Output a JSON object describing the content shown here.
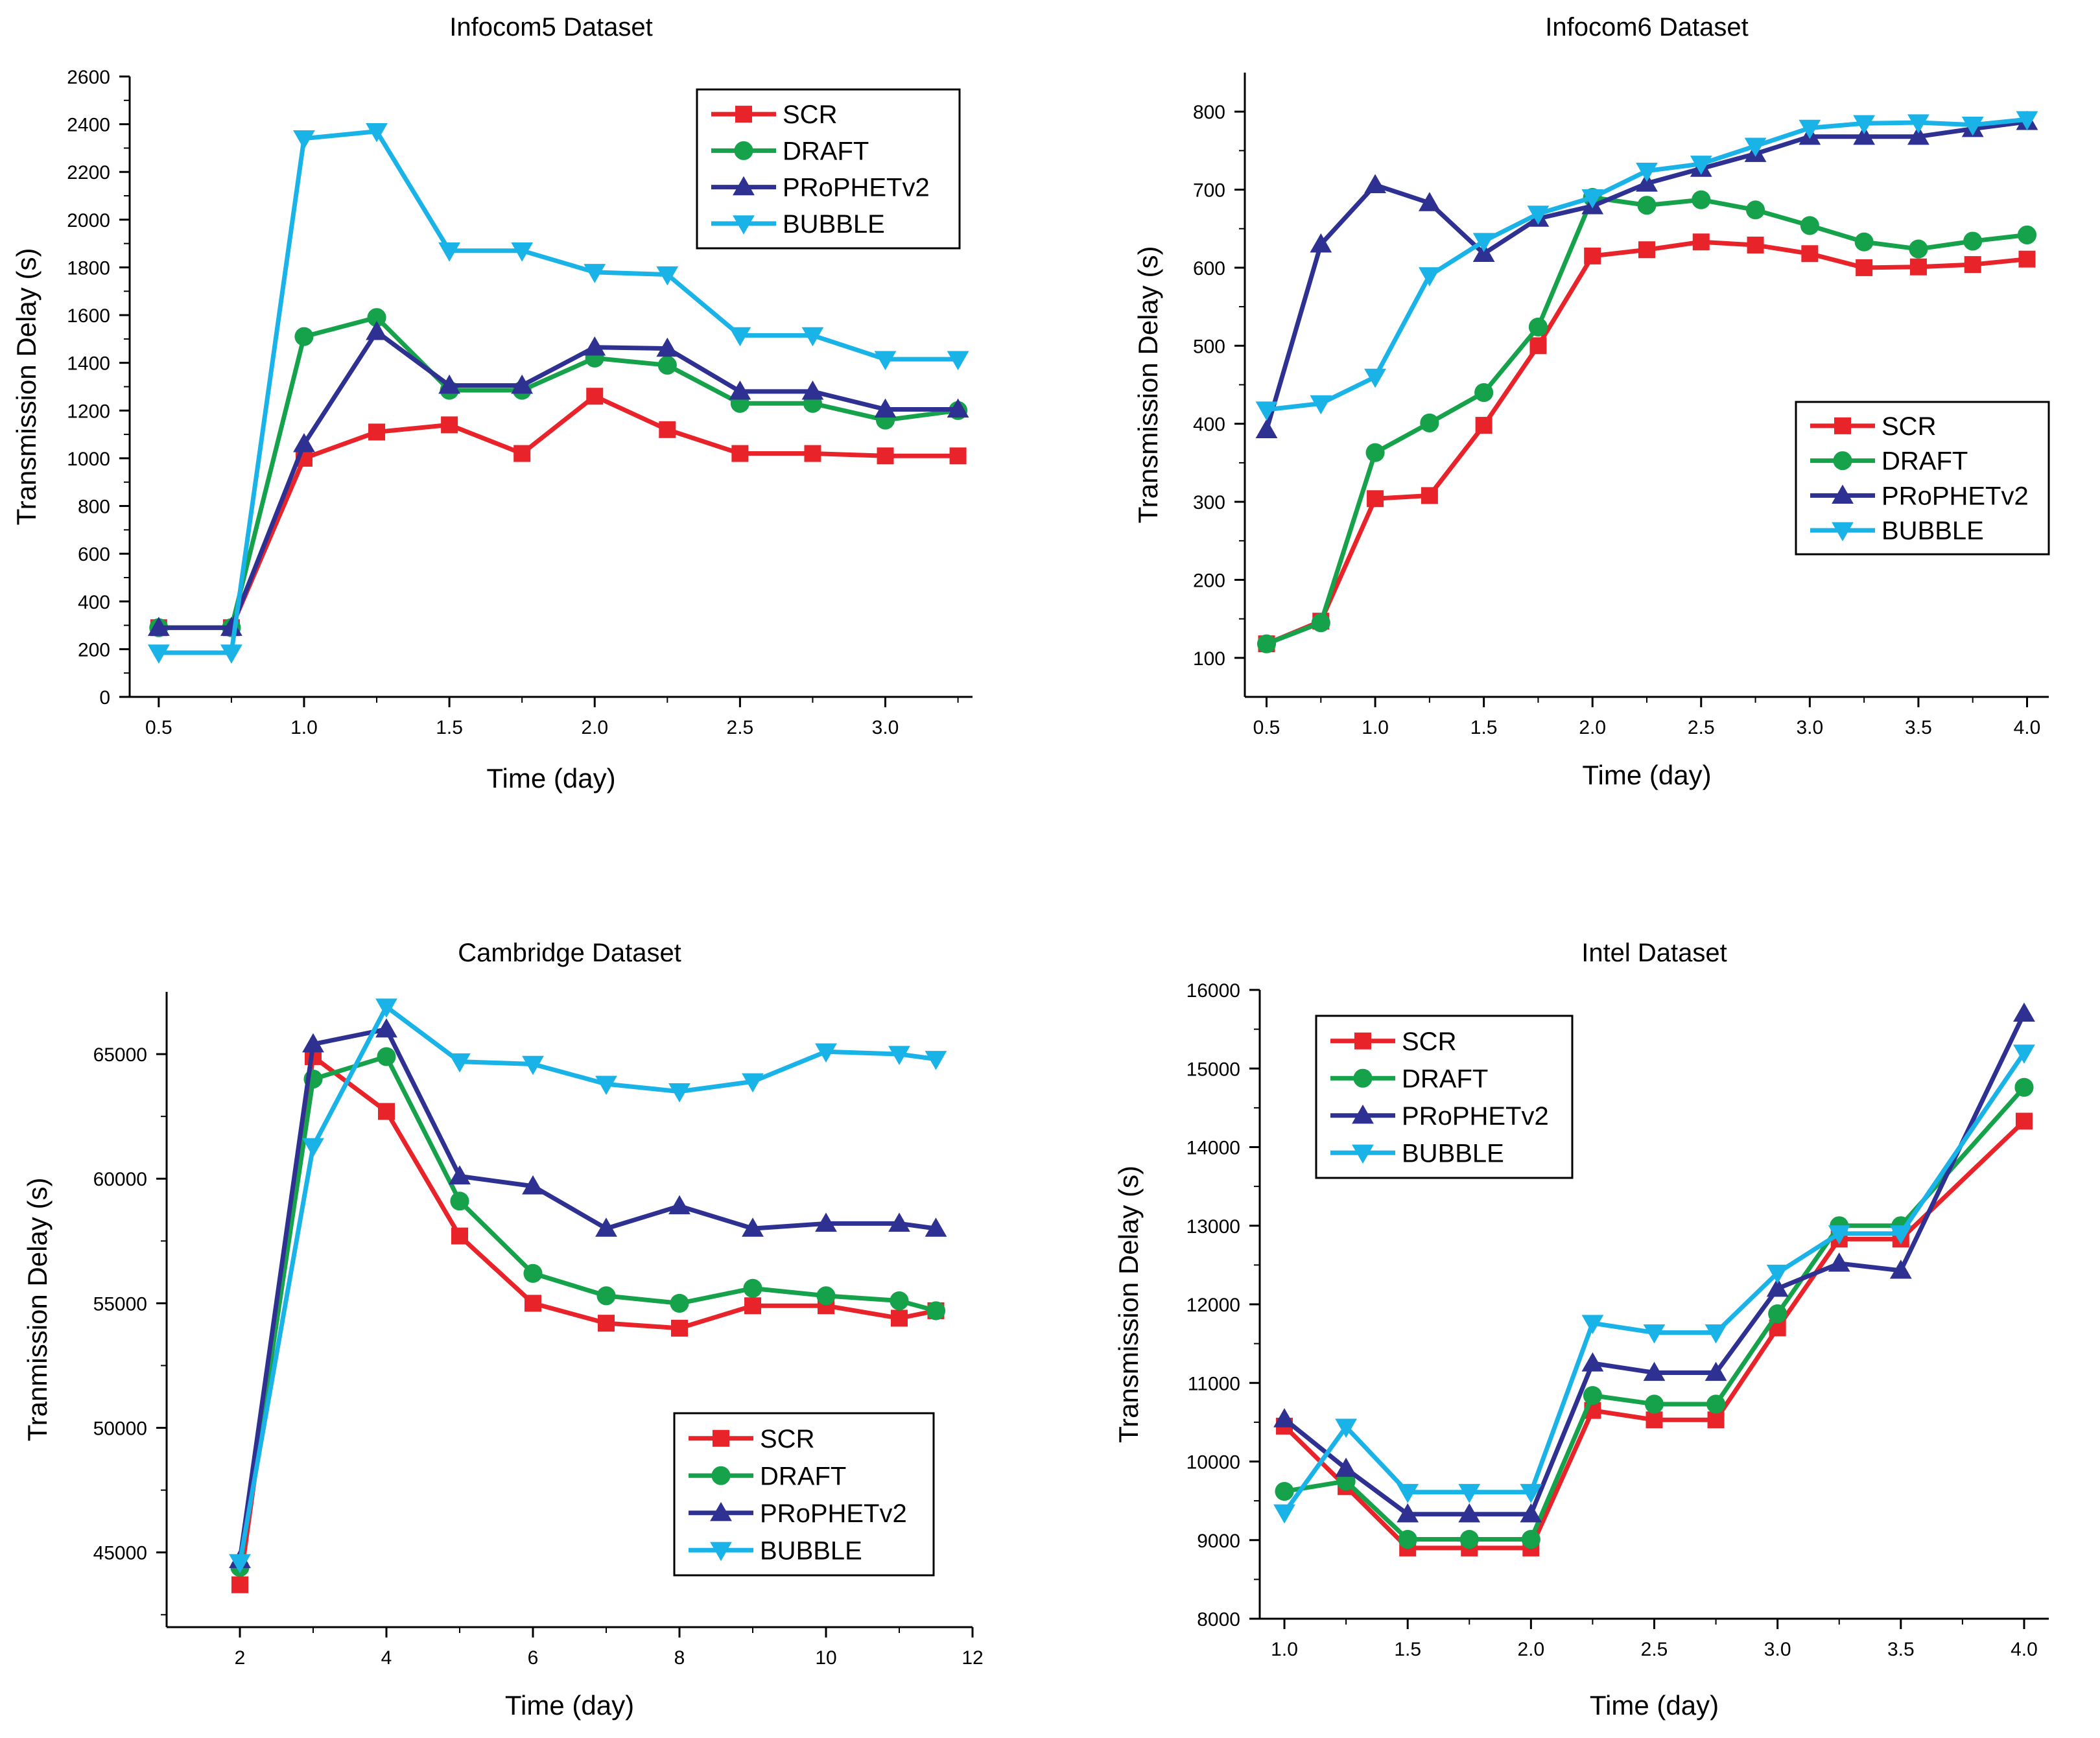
{
  "colors": {
    "SCR": "#e8232a",
    "DRAFT": "#15a24b",
    "PRoPHETv2": "#2e3192",
    "BUBBLE": "#1ab3e8"
  },
  "chart_data": [
    {
      "type": "line",
      "title": "Infocom5 Dataset",
      "xlabel": "Time (day)",
      "ylabel": "Transmission Delay (s)",
      "xlim": [
        0.4,
        3.3
      ],
      "ylim": [
        0,
        2600
      ],
      "xticks": [
        "0.5",
        "1.0",
        "1.5",
        "2.0",
        "2.5",
        "3.0"
      ],
      "yticks": [
        "0",
        "200",
        "400",
        "600",
        "800",
        "1000",
        "1200",
        "1400",
        "1600",
        "1800",
        "2000",
        "2200",
        "2400",
        "2600"
      ],
      "legend_position": "top-right",
      "x": [
        0.5,
        0.75,
        1.0,
        1.25,
        1.5,
        1.75,
        2.0,
        2.25,
        2.5,
        2.75,
        3.0,
        3.25
      ],
      "series": [
        {
          "name": "SCR",
          "marker": "square",
          "values": [
            290,
            290,
            1000,
            1110,
            1140,
            1020,
            1260,
            1120,
            1020,
            1020,
            1010,
            1010
          ]
        },
        {
          "name": "DRAFT",
          "marker": "circle",
          "values": [
            290,
            290,
            1510,
            1590,
            1285,
            1285,
            1420,
            1390,
            1230,
            1230,
            1160,
            1200
          ]
        },
        {
          "name": "PRoPHETv2",
          "marker": "triangle-up",
          "values": [
            290,
            290,
            1060,
            1530,
            1305,
            1305,
            1465,
            1460,
            1280,
            1280,
            1205,
            1205
          ]
        },
        {
          "name": "BUBBLE",
          "marker": "triangle-down",
          "values": [
            185,
            185,
            2340,
            2370,
            1870,
            1870,
            1780,
            1770,
            1515,
            1515,
            1415,
            1415
          ]
        }
      ]
    },
    {
      "type": "line",
      "title": "Infocom6 Dataset",
      "xlabel": "Time (day)",
      "ylabel": "Transmission Delay (s)",
      "xlim": [
        0.4,
        4.1
      ],
      "ylim": [
        50,
        850
      ],
      "xticks": [
        "0.5",
        "1.0",
        "1.5",
        "2.0",
        "2.5",
        "3.0",
        "3.5",
        "4.0"
      ],
      "yticks": [
        "100",
        "200",
        "300",
        "400",
        "500",
        "600",
        "700",
        "800"
      ],
      "legend_position": "middle-right",
      "x": [
        0.5,
        0.75,
        1.0,
        1.25,
        1.5,
        1.75,
        2.0,
        2.25,
        2.5,
        2.75,
        3.0,
        3.25,
        3.5,
        3.75,
        4.0
      ],
      "series": [
        {
          "name": "SCR",
          "marker": "square",
          "values": [
            118,
            147,
            304,
            308,
            398,
            500,
            615,
            623,
            633,
            629,
            618,
            600,
            601,
            604,
            611
          ]
        },
        {
          "name": "DRAFT",
          "marker": "circle",
          "values": [
            118,
            145,
            363,
            401,
            440,
            524,
            690,
            680,
            687,
            674,
            654,
            633,
            624,
            634,
            642
          ]
        },
        {
          "name": "PRoPHETv2",
          "marker": "triangle-up",
          "values": [
            392,
            630,
            706,
            683,
            618,
            663,
            679,
            708,
            727,
            746,
            768,
            768,
            768,
            778,
            787
          ]
        },
        {
          "name": "BUBBLE",
          "marker": "triangle-down",
          "values": [
            418,
            426,
            460,
            590,
            634,
            669,
            690,
            724,
            733,
            756,
            779,
            785,
            786,
            783,
            790
          ]
        }
      ]
    },
    {
      "type": "line",
      "title": "Cambridge Dataset",
      "xlabel": "Time (day)",
      "ylabel": "Tranmission Delay (s)",
      "xlim": [
        1.0,
        12.0
      ],
      "ylim": [
        42000,
        67500
      ],
      "xticks": [
        "2",
        "4",
        "6",
        "8",
        "10",
        "12"
      ],
      "yticks": [
        "45000",
        "50000",
        "55000",
        "60000",
        "65000"
      ],
      "legend_position": "bottom-right",
      "x": [
        2,
        3,
        4,
        5,
        6,
        7,
        8,
        9,
        10,
        11,
        11.5
      ],
      "series": [
        {
          "name": "SCR",
          "marker": "square",
          "values": [
            43700,
            64900,
            62700,
            57700,
            55000,
            54200,
            54000,
            54900,
            54900,
            54400,
            54700
          ]
        },
        {
          "name": "DRAFT",
          "marker": "circle",
          "values": [
            44400,
            64000,
            64900,
            59100,
            56200,
            55300,
            55000,
            55600,
            55300,
            55100,
            54700
          ]
        },
        {
          "name": "PRoPHETv2",
          "marker": "triangle-up",
          "values": [
            44700,
            65400,
            66000,
            60100,
            59700,
            58000,
            58900,
            58000,
            58200,
            58200,
            58000
          ]
        },
        {
          "name": "BUBBLE",
          "marker": "triangle-down",
          "values": [
            44600,
            61300,
            66900,
            64700,
            64600,
            63800,
            63500,
            63900,
            65100,
            65000,
            64800
          ]
        }
      ]
    },
    {
      "type": "line",
      "title": "Intel Dataset",
      "xlabel": "Time (day)",
      "ylabel": "Transmission Delay (s)",
      "xlim": [
        0.9,
        4.1
      ],
      "ylim": [
        8000,
        16000
      ],
      "xticks": [
        "1.0",
        "1.5",
        "2.0",
        "2.5",
        "3.0",
        "3.5",
        "4.0"
      ],
      "yticks": [
        "8000",
        "9000",
        "10000",
        "11000",
        "12000",
        "13000",
        "14000",
        "15000",
        "16000"
      ],
      "legend_position": "top-left",
      "x": [
        1.0,
        1.25,
        1.5,
        1.75,
        2.0,
        2.25,
        2.5,
        2.75,
        3.0,
        3.25,
        3.5,
        4.0
      ],
      "series": [
        {
          "name": "SCR",
          "marker": "square",
          "values": [
            10450,
            9680,
            8900,
            8900,
            8900,
            10650,
            10530,
            10530,
            11700,
            12830,
            12830,
            14330
          ]
        },
        {
          "name": "DRAFT",
          "marker": "circle",
          "values": [
            9620,
            9750,
            9010,
            9010,
            9010,
            10840,
            10730,
            10730,
            11880,
            13000,
            13000,
            14760
          ]
        },
        {
          "name": "PRoPHETv2",
          "marker": "triangle-up",
          "values": [
            10540,
            9910,
            9330,
            9330,
            9330,
            11250,
            11130,
            11130,
            12200,
            12520,
            12430,
            15700
          ]
        },
        {
          "name": "BUBBLE",
          "marker": "triangle-down",
          "values": [
            9350,
            10440,
            9610,
            9610,
            9610,
            11760,
            11640,
            11640,
            12400,
            12900,
            12900,
            15200
          ]
        }
      ]
    }
  ]
}
